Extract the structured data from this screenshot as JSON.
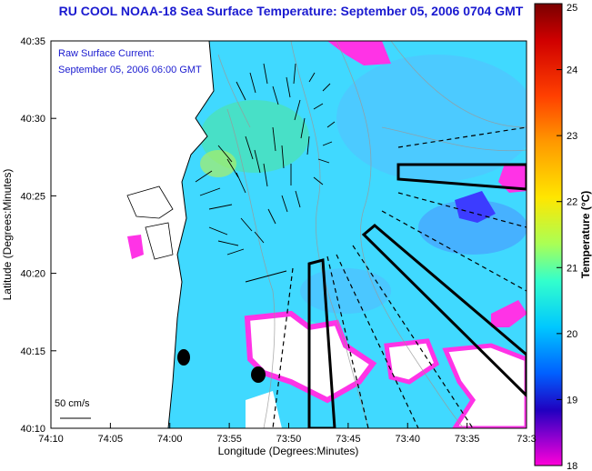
{
  "title": "RU COOL  NOAA-18  Sea Surface Temperature:  September 05, 2006 0704 GMT",
  "current_label_line1": "Raw Surface Current:",
  "current_label_line2": "September 05, 2006 06:00 GMT",
  "scale_arrow_label": "50 cm/s",
  "xlabel": "Longitude (Degrees:Minutes)",
  "ylabel": "Latitude (Degrees:Minutes)",
  "colorbar_label": "Temperature (°C)",
  "x_ticks": [
    "74:10",
    "74:05",
    "74:00",
    "73:55",
    "73:50",
    "73:45",
    "73:40",
    "73:35",
    "73:3"
  ],
  "y_ticks": [
    "40:35",
    "40:30",
    "40:25",
    "40:20",
    "40:15",
    "40:10"
  ],
  "colorbar_ticks": [
    "25",
    "24",
    "23",
    "22",
    "21",
    "20",
    "19",
    "18"
  ],
  "colors": {
    "land": "#ffffff",
    "sea_warm": "#3fd8ff",
    "sea_cool": "#5aa8ff",
    "cold_fringe": "#ff33e6",
    "title_text": "#1a1ad0"
  }
}
